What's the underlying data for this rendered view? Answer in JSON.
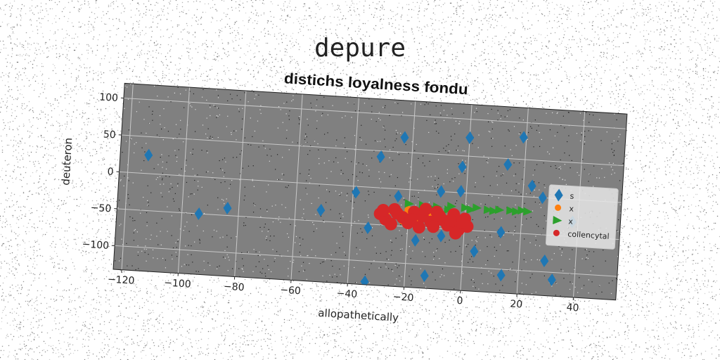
{
  "page_title": "depure",
  "chart_data": {
    "type": "scatter",
    "title": "distichs loyalness fondu",
    "xlabel": "allopathetically",
    "ylabel": "deuteron",
    "xlim": [
      -123,
      55
    ],
    "ylim": [
      -132,
      120
    ],
    "xticks": [
      -120,
      -100,
      -80,
      -60,
      -40,
      -20,
      0,
      20,
      40
    ],
    "yticks": [
      100,
      50,
      0,
      -50,
      -100
    ],
    "grid": true,
    "legend_position": "right",
    "background": "#808080",
    "series": [
      {
        "name": "s",
        "marker": "diamond",
        "color": "#1f77b4",
        "points": [
          [
            -113,
            25
          ],
          [
            -94,
            -50
          ],
          [
            -84,
            -40
          ],
          [
            -51,
            -35
          ],
          [
            -39,
            -8
          ],
          [
            -34,
            -55
          ],
          [
            -31,
            42
          ],
          [
            -24,
            -10
          ],
          [
            -23,
            70
          ],
          [
            -9,
            0
          ],
          [
            -8,
            -60
          ],
          [
            -2,
            35
          ],
          [
            -2,
            2
          ],
          [
            0,
            75
          ],
          [
            -17,
            -68
          ],
          [
            -13,
            -115
          ],
          [
            -34,
            -128
          ],
          [
            4,
            -78
          ],
          [
            13,
            -50
          ],
          [
            14,
            42
          ],
          [
            14,
            -108
          ],
          [
            12,
            -148
          ],
          [
            19,
            80
          ],
          [
            23,
            15
          ],
          [
            27,
            0
          ],
          [
            29,
            -85
          ],
          [
            32,
            -110
          ],
          [
            38,
            -30
          ]
        ]
      },
      {
        "name": "x",
        "marker": "circle",
        "color": "#ff7f0e",
        "points": [
          [
            -28,
            -32
          ],
          [
            -24,
            -35
          ],
          [
            -20,
            -28
          ],
          [
            -16,
            -38
          ],
          [
            -12,
            -30
          ],
          [
            -8,
            -40
          ],
          [
            -5,
            -33
          ],
          [
            -22,
            -42
          ],
          [
            -14,
            -25
          ],
          [
            -2,
            -38
          ]
        ]
      },
      {
        "name": "x",
        "marker": "triangle-right",
        "color": "#2ca02c",
        "points": [
          [
            -20,
            -19
          ],
          [
            -15,
            -20
          ],
          [
            -10,
            -21
          ],
          [
            -5,
            -19
          ],
          [
            0,
            -20
          ],
          [
            4,
            -19
          ],
          [
            8,
            -21
          ],
          [
            12,
            -20
          ],
          [
            16,
            -20
          ],
          [
            20,
            -19
          ],
          [
            -12,
            -23
          ],
          [
            -6,
            -24
          ],
          [
            2,
            -22
          ],
          [
            10,
            -22
          ],
          [
            18,
            -21
          ],
          [
            22,
            -20
          ]
        ]
      },
      {
        "name": "collencytal",
        "marker": "circle",
        "color": "#d62728",
        "points": [
          [
            -30,
            -35
          ],
          [
            -28,
            -42
          ],
          [
            -25,
            -28
          ],
          [
            -22,
            -38
          ],
          [
            -20,
            -45
          ],
          [
            -18,
            -30
          ],
          [
            -15,
            -35
          ],
          [
            -12,
            -42
          ],
          [
            -10,
            -28
          ],
          [
            -8,
            -38
          ],
          [
            -6,
            -45
          ],
          [
            -4,
            -30
          ],
          [
            -2,
            -50
          ],
          [
            0,
            -35
          ],
          [
            1,
            -45
          ],
          [
            -26,
            -48
          ],
          [
            -24,
            -33
          ],
          [
            -16,
            -50
          ],
          [
            -14,
            -25
          ],
          [
            -3,
            -55
          ],
          [
            -1,
            -40
          ],
          [
            -19,
            -40
          ],
          [
            -9,
            -33
          ],
          [
            -29,
            -30
          ],
          [
            -11,
            -48
          ],
          [
            -5,
            -38
          ]
        ]
      }
    ]
  }
}
